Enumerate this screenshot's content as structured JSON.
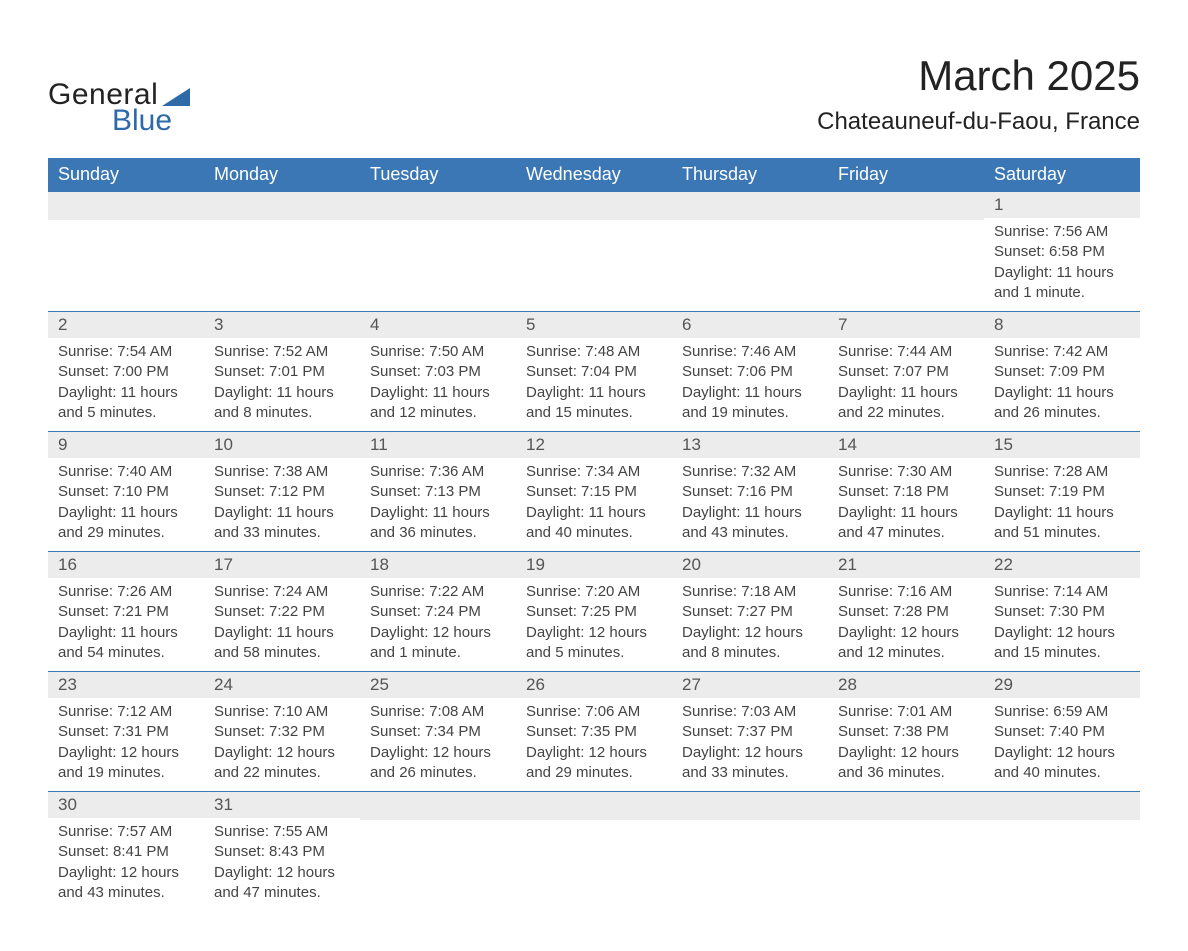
{
  "logo": {
    "general": "General",
    "blue": "Blue"
  },
  "title": "March 2025",
  "location": "Chateauneuf-du-Faou, France",
  "colors": {
    "header_bg": "#3b76b5",
    "header_text": "#ffffff",
    "daynum_bg": "#ececec",
    "row_border": "#3b76b5",
    "logo_blue": "#2f6aa8",
    "body_text": "#444444",
    "background": "#ffffff"
  },
  "weekdays": [
    "Sunday",
    "Monday",
    "Tuesday",
    "Wednesday",
    "Thursday",
    "Friday",
    "Saturday"
  ],
  "weeks": [
    [
      {
        "empty": true
      },
      {
        "empty": true
      },
      {
        "empty": true
      },
      {
        "empty": true
      },
      {
        "empty": true
      },
      {
        "empty": true
      },
      {
        "day": "1",
        "sunrise": "Sunrise: 7:56 AM",
        "sunset": "Sunset: 6:58 PM",
        "daylight": "Daylight: 11 hours and 1 minute."
      }
    ],
    [
      {
        "day": "2",
        "sunrise": "Sunrise: 7:54 AM",
        "sunset": "Sunset: 7:00 PM",
        "daylight": "Daylight: 11 hours and 5 minutes."
      },
      {
        "day": "3",
        "sunrise": "Sunrise: 7:52 AM",
        "sunset": "Sunset: 7:01 PM",
        "daylight": "Daylight: 11 hours and 8 minutes."
      },
      {
        "day": "4",
        "sunrise": "Sunrise: 7:50 AM",
        "sunset": "Sunset: 7:03 PM",
        "daylight": "Daylight: 11 hours and 12 minutes."
      },
      {
        "day": "5",
        "sunrise": "Sunrise: 7:48 AM",
        "sunset": "Sunset: 7:04 PM",
        "daylight": "Daylight: 11 hours and 15 minutes."
      },
      {
        "day": "6",
        "sunrise": "Sunrise: 7:46 AM",
        "sunset": "Sunset: 7:06 PM",
        "daylight": "Daylight: 11 hours and 19 minutes."
      },
      {
        "day": "7",
        "sunrise": "Sunrise: 7:44 AM",
        "sunset": "Sunset: 7:07 PM",
        "daylight": "Daylight: 11 hours and 22 minutes."
      },
      {
        "day": "8",
        "sunrise": "Sunrise: 7:42 AM",
        "sunset": "Sunset: 7:09 PM",
        "daylight": "Daylight: 11 hours and 26 minutes."
      }
    ],
    [
      {
        "day": "9",
        "sunrise": "Sunrise: 7:40 AM",
        "sunset": "Sunset: 7:10 PM",
        "daylight": "Daylight: 11 hours and 29 minutes."
      },
      {
        "day": "10",
        "sunrise": "Sunrise: 7:38 AM",
        "sunset": "Sunset: 7:12 PM",
        "daylight": "Daylight: 11 hours and 33 minutes."
      },
      {
        "day": "11",
        "sunrise": "Sunrise: 7:36 AM",
        "sunset": "Sunset: 7:13 PM",
        "daylight": "Daylight: 11 hours and 36 minutes."
      },
      {
        "day": "12",
        "sunrise": "Sunrise: 7:34 AM",
        "sunset": "Sunset: 7:15 PM",
        "daylight": "Daylight: 11 hours and 40 minutes."
      },
      {
        "day": "13",
        "sunrise": "Sunrise: 7:32 AM",
        "sunset": "Sunset: 7:16 PM",
        "daylight": "Daylight: 11 hours and 43 minutes."
      },
      {
        "day": "14",
        "sunrise": "Sunrise: 7:30 AM",
        "sunset": "Sunset: 7:18 PM",
        "daylight": "Daylight: 11 hours and 47 minutes."
      },
      {
        "day": "15",
        "sunrise": "Sunrise: 7:28 AM",
        "sunset": "Sunset: 7:19 PM",
        "daylight": "Daylight: 11 hours and 51 minutes."
      }
    ],
    [
      {
        "day": "16",
        "sunrise": "Sunrise: 7:26 AM",
        "sunset": "Sunset: 7:21 PM",
        "daylight": "Daylight: 11 hours and 54 minutes."
      },
      {
        "day": "17",
        "sunrise": "Sunrise: 7:24 AM",
        "sunset": "Sunset: 7:22 PM",
        "daylight": "Daylight: 11 hours and 58 minutes."
      },
      {
        "day": "18",
        "sunrise": "Sunrise: 7:22 AM",
        "sunset": "Sunset: 7:24 PM",
        "daylight": "Daylight: 12 hours and 1 minute."
      },
      {
        "day": "19",
        "sunrise": "Sunrise: 7:20 AM",
        "sunset": "Sunset: 7:25 PM",
        "daylight": "Daylight: 12 hours and 5 minutes."
      },
      {
        "day": "20",
        "sunrise": "Sunrise: 7:18 AM",
        "sunset": "Sunset: 7:27 PM",
        "daylight": "Daylight: 12 hours and 8 minutes."
      },
      {
        "day": "21",
        "sunrise": "Sunrise: 7:16 AM",
        "sunset": "Sunset: 7:28 PM",
        "daylight": "Daylight: 12 hours and 12 minutes."
      },
      {
        "day": "22",
        "sunrise": "Sunrise: 7:14 AM",
        "sunset": "Sunset: 7:30 PM",
        "daylight": "Daylight: 12 hours and 15 minutes."
      }
    ],
    [
      {
        "day": "23",
        "sunrise": "Sunrise: 7:12 AM",
        "sunset": "Sunset: 7:31 PM",
        "daylight": "Daylight: 12 hours and 19 minutes."
      },
      {
        "day": "24",
        "sunrise": "Sunrise: 7:10 AM",
        "sunset": "Sunset: 7:32 PM",
        "daylight": "Daylight: 12 hours and 22 minutes."
      },
      {
        "day": "25",
        "sunrise": "Sunrise: 7:08 AM",
        "sunset": "Sunset: 7:34 PM",
        "daylight": "Daylight: 12 hours and 26 minutes."
      },
      {
        "day": "26",
        "sunrise": "Sunrise: 7:06 AM",
        "sunset": "Sunset: 7:35 PM",
        "daylight": "Daylight: 12 hours and 29 minutes."
      },
      {
        "day": "27",
        "sunrise": "Sunrise: 7:03 AM",
        "sunset": "Sunset: 7:37 PM",
        "daylight": "Daylight: 12 hours and 33 minutes."
      },
      {
        "day": "28",
        "sunrise": "Sunrise: 7:01 AM",
        "sunset": "Sunset: 7:38 PM",
        "daylight": "Daylight: 12 hours and 36 minutes."
      },
      {
        "day": "29",
        "sunrise": "Sunrise: 6:59 AM",
        "sunset": "Sunset: 7:40 PM",
        "daylight": "Daylight: 12 hours and 40 minutes."
      }
    ],
    [
      {
        "day": "30",
        "sunrise": "Sunrise: 7:57 AM",
        "sunset": "Sunset: 8:41 PM",
        "daylight": "Daylight: 12 hours and 43 minutes."
      },
      {
        "day": "31",
        "sunrise": "Sunrise: 7:55 AM",
        "sunset": "Sunset: 8:43 PM",
        "daylight": "Daylight: 12 hours and 47 minutes."
      },
      {
        "empty": true
      },
      {
        "empty": true
      },
      {
        "empty": true
      },
      {
        "empty": true
      },
      {
        "empty": true
      }
    ]
  ]
}
